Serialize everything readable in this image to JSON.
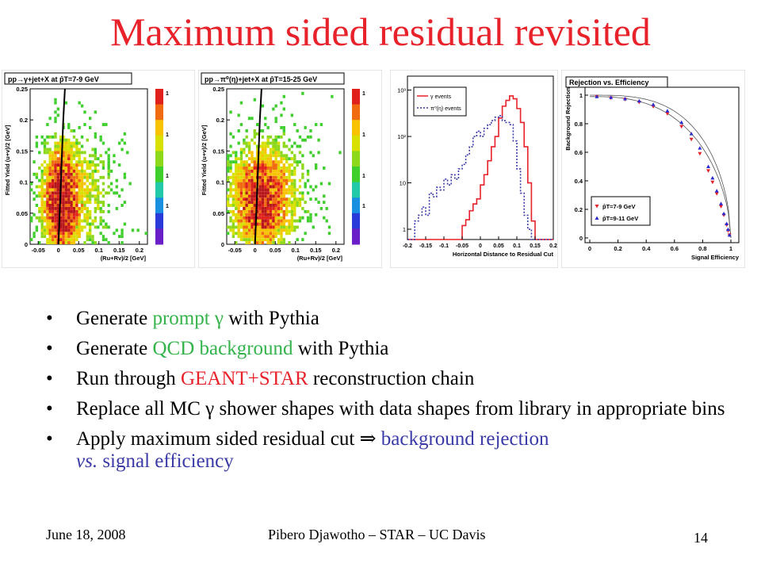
{
  "slide": {
    "title": "Maximum sided residual revisited",
    "footer_date": "June 18, 2008",
    "footer_author": "Pibero Djawotho – STAR – UC Davis",
    "page_number": "14"
  },
  "bullets": [
    {
      "pre": "Generate ",
      "hl": "prompt γ",
      "post": " with Pythia"
    },
    {
      "pre": "Generate ",
      "hl": "QCD background",
      "post": " with Pythia"
    },
    {
      "pre": "Run through ",
      "hl": "GEANT+STAR",
      "post": " reconstruction chain"
    },
    {
      "pre": "Replace all MC γ shower shapes with data shapes from library in appropriate bins",
      "hl": "",
      "post": ""
    },
    {
      "pre": "Apply maximum sided residual cut ⇒ ",
      "hl": "background rejection",
      "it": "vs.",
      "hl2": " signal efficiency"
    }
  ],
  "colors": {
    "title": "#e8222a",
    "green": "#33b34a",
    "red": "#e8222a",
    "blue": "#3a3aa6"
  },
  "chart_data": [
    {
      "type": "heatmap",
      "title": "pp→γ+jet+X at p̂T=7-9 GeV",
      "xlabel": "(Ru+Rv)/2 [GeV]",
      "ylabel": "Fitted Yield (u+v)/2 [GeV]",
      "xlim": [
        -0.07,
        0.22
      ],
      "ylim": [
        0,
        0.25
      ],
      "x_ticks": [
        "-0.05",
        "0",
        "0.05",
        "0.1",
        "0.15",
        "0.2"
      ],
      "y_ticks": [
        "0",
        "0.05",
        "0.1",
        "0.15",
        "0.2",
        "0.25"
      ],
      "z_ticks": [
        "1",
        "1",
        "1",
        "1"
      ],
      "cut_line": [
        [
          0.0,
          0.0
        ],
        [
          0.003,
          0.05
        ],
        [
          0.006,
          0.1
        ],
        [
          0.009,
          0.15
        ],
        [
          0.012,
          0.2
        ],
        [
          0.016,
          0.25
        ]
      ]
    },
    {
      "type": "heatmap",
      "title": "pp→π⁰(η)+jet+X at p̂T=15-25 GeV",
      "xlabel": "(Ru+Rv)/2 [GeV]",
      "ylabel": "Fitted Yield (u+v)/2 [GeV]",
      "xlim": [
        -0.07,
        0.22
      ],
      "ylim": [
        0,
        0.25
      ],
      "x_ticks": [
        "-0.05",
        "0",
        "0.05",
        "0.1",
        "0.15",
        "0.2"
      ],
      "y_ticks": [
        "0",
        "0.05",
        "0.1",
        "0.15",
        "0.2",
        "0.25"
      ],
      "z_ticks": [
        "1",
        "1",
        "1",
        "1"
      ],
      "cut_line": [
        [
          0.0,
          0.0
        ],
        [
          0.003,
          0.05
        ],
        [
          0.006,
          0.1
        ],
        [
          0.009,
          0.15
        ],
        [
          0.012,
          0.2
        ],
        [
          0.016,
          0.25
        ]
      ]
    },
    {
      "type": "line",
      "xlabel": "Horizontal Distance to Residual Cut",
      "x_ticks": [
        "-0.2",
        "-0.15",
        "-0.1",
        "-0.05",
        "0",
        "0.05",
        "0.1",
        "0.15",
        "0.2"
      ],
      "y_ticks": [
        "1",
        "10",
        "10²",
        "10³"
      ],
      "xlim": [
        -0.2,
        0.2
      ],
      "ylim": [
        1,
        2000
      ],
      "y_scale": "log",
      "legend_position": "top-left",
      "bin_edges_start": -0.2,
      "bin_width": 0.01,
      "series": [
        {
          "name": "γ events",
          "color": "#e8222a",
          "style": "solid",
          "values": [
            0,
            0,
            0,
            0,
            0,
            0,
            0,
            0,
            0,
            0,
            0,
            0,
            0,
            0,
            0,
            1.2,
            1.6,
            2.5,
            3.5,
            4.5,
            9,
            15,
            30,
            60,
            100,
            250,
            450,
            600,
            750,
            650,
            400,
            200,
            60,
            10,
            1.5,
            0,
            0,
            0,
            0,
            0
          ]
        },
        {
          "name": "π⁰(η) events",
          "color": "#3a3aa6",
          "style": "dotted",
          "values": [
            0,
            0,
            1.5,
            2,
            3,
            2,
            6,
            5,
            8,
            7,
            12,
            9,
            15,
            12,
            20,
            25,
            40,
            60,
            100,
            130,
            100,
            150,
            180,
            220,
            260,
            280,
            220,
            200,
            180,
            80,
            20,
            6,
            2,
            1,
            0,
            0,
            0,
            0,
            0,
            0
          ]
        }
      ]
    },
    {
      "type": "scatter",
      "title": "Rejection vs. Efficiency",
      "xlabel": "Signal Efficiency",
      "ylabel": "Background Rejection",
      "xlim": [
        0,
        1
      ],
      "ylim": [
        0,
        1
      ],
      "x_ticks": [
        "0",
        "0.2",
        "0.4",
        "0.6",
        "0.8",
        "1"
      ],
      "y_ticks": [
        "0",
        "0.2",
        "0.4",
        "0.6",
        "0.8",
        "1"
      ],
      "legend_position": "bottom-left",
      "series": [
        {
          "name": "p̂T=7-9 GeV",
          "color": "#e8222a",
          "marker": "triangle-down",
          "x": [
            0.05,
            0.15,
            0.25,
            0.35,
            0.45,
            0.55,
            0.65,
            0.72,
            0.78,
            0.84,
            0.87,
            0.9,
            0.93,
            0.95,
            0.97,
            0.98,
            0.99
          ],
          "y": [
            0.99,
            0.98,
            0.97,
            0.95,
            0.92,
            0.87,
            0.78,
            0.69,
            0.59,
            0.47,
            0.39,
            0.31,
            0.22,
            0.16,
            0.09,
            0.05,
            0.02
          ]
        },
        {
          "name": "p̂T=9-11 GeV",
          "color": "#2a2ad0",
          "marker": "triangle-up",
          "x": [
            0.05,
            0.15,
            0.25,
            0.35,
            0.45,
            0.55,
            0.65,
            0.72,
            0.78,
            0.84,
            0.87,
            0.9,
            0.93,
            0.95,
            0.97,
            0.98,
            0.99
          ],
          "y": [
            0.99,
            0.985,
            0.975,
            0.96,
            0.935,
            0.89,
            0.81,
            0.73,
            0.63,
            0.5,
            0.42,
            0.33,
            0.24,
            0.17,
            0.1,
            0.06,
            0.02
          ]
        }
      ]
    }
  ]
}
